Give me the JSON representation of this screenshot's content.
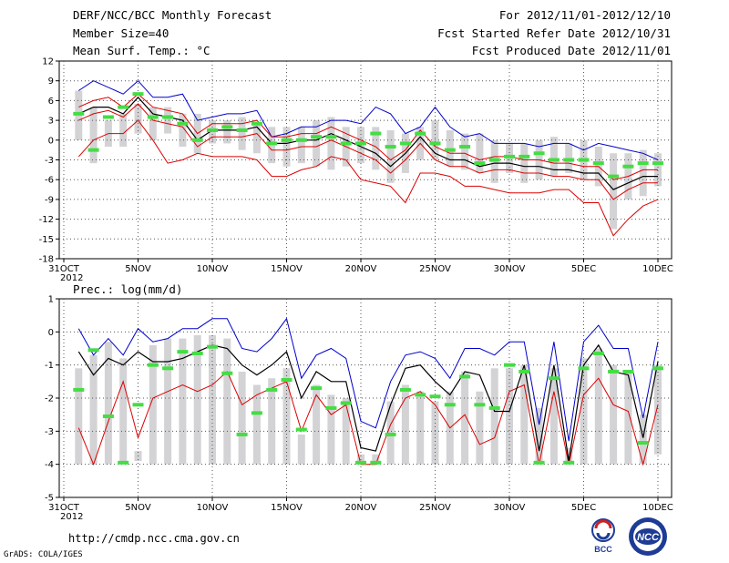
{
  "header": {
    "left_line1": "DERF/NCC/BCC Monthly Forecast",
    "left_line2": "Member Size=40",
    "left_line3": "Mean Surf. Temp.: °C",
    "right_line1": "For 2012/11/01-2012/12/10",
    "right_line2": "Fcst Started Refer Date 2012/10/31",
    "right_line3": "Fcst Produced Date 2012/11/01"
  },
  "footer": {
    "url": "http://cmdp.ncc.cma.gov.cn",
    "grads": "GrADS: COLA/IGES",
    "logo1_label": "BCC",
    "logo2_label": "NCC"
  },
  "colors": {
    "max": "#0000cc",
    "mean": "#000000",
    "min": "#dd0000",
    "bar": "#d3d3d6",
    "obs": "#44dd44"
  },
  "chart_data": [
    {
      "type": "line",
      "title": "Mean Surf. Temp.: °C",
      "x_tick_labels": [
        "31OCT",
        "5NOV",
        "10NOV",
        "15NOV",
        "20NOV",
        "25NOV",
        "30NOV",
        "5DEC",
        "10DEC"
      ],
      "x_year_label": "2012",
      "x_tick_days": [
        0,
        5,
        10,
        15,
        20,
        25,
        30,
        35,
        40
      ],
      "x_range": [
        0,
        40
      ],
      "ylim": [
        -18,
        12
      ],
      "y_ticks": [
        12,
        9,
        6,
        3,
        0,
        -3,
        -6,
        -9,
        -12,
        -15,
        -18
      ],
      "days": [
        1,
        2,
        3,
        4,
        5,
        6,
        7,
        8,
        9,
        10,
        11,
        12,
        13,
        14,
        15,
        16,
        17,
        18,
        19,
        20,
        21,
        22,
        23,
        24,
        25,
        26,
        27,
        28,
        29,
        30,
        31,
        32,
        33,
        34,
        35,
        36,
        37,
        38,
        39,
        40
      ],
      "series": [
        {
          "name": "max",
          "values": [
            7.5,
            9,
            8,
            7,
            9,
            6.5,
            6.5,
            7,
            3,
            3.5,
            4,
            4,
            4.5,
            0.5,
            1,
            2,
            2,
            3,
            3,
            2.5,
            5,
            4,
            1,
            2,
            5,
            2,
            0.5,
            1,
            -0.5,
            -0.5,
            -0.5,
            -1,
            -0.5,
            -0.5,
            -1.5,
            -0.5,
            -1,
            -1.5,
            -2,
            -3
          ]
        },
        {
          "name": "mean",
          "values": [
            4,
            5,
            5,
            4,
            6.5,
            4,
            3.5,
            3,
            0,
            1.5,
            1.5,
            1.5,
            2,
            -0.5,
            -0.5,
            0,
            0,
            1,
            0,
            -1,
            -2,
            -4,
            -2,
            0.5,
            -2,
            -3,
            -3,
            -4,
            -3.5,
            -3.5,
            -4,
            -4,
            -4.5,
            -4.5,
            -5,
            -5,
            -7.5,
            -6.5,
            -5.5,
            -5.5
          ]
        },
        {
          "name": "upper",
          "values": [
            5,
            6,
            6.5,
            5,
            7,
            5,
            4.5,
            4,
            1,
            2.5,
            2.5,
            2.5,
            3,
            0.5,
            0.5,
            1,
            1,
            2,
            1,
            0,
            -1,
            -3,
            -1.5,
            1.5,
            -1,
            -2,
            -2,
            -3,
            -2.5,
            -2.5,
            -3,
            -3,
            -3.5,
            -3.5,
            -4,
            -4,
            -6,
            -5.5,
            -4.5,
            -4.5
          ]
        },
        {
          "name": "lower",
          "values": [
            3,
            4,
            4.5,
            3.5,
            5.5,
            3,
            2.5,
            2,
            -1,
            0.5,
            0.5,
            0.5,
            1,
            -1.5,
            -1.5,
            -1,
            -1,
            0,
            -1,
            -2,
            -3,
            -5,
            -3,
            -0.5,
            -3,
            -4,
            -4,
            -5,
            -4.5,
            -4.5,
            -5,
            -5,
            -5.5,
            -5.5,
            -6,
            -6,
            -9,
            -7.5,
            -6.5,
            -6.5
          ]
        },
        {
          "name": "min",
          "values": [
            -2.5,
            0,
            1,
            1,
            3,
            0,
            -3.5,
            -3,
            -2,
            -2.5,
            -2.5,
            -2.5,
            -3,
            -5.5,
            -5.5,
            -4.5,
            -4,
            -2.5,
            -3,
            -6,
            -6.5,
            -7,
            -9.5,
            -5,
            -5,
            -5.5,
            -7,
            -7,
            -7.5,
            -8,
            -8,
            -8,
            -7.5,
            -7.5,
            -9.5,
            -9.5,
            -14.5,
            -12,
            -10,
            -9
          ]
        },
        {
          "name": "bar_top",
          "values": [
            7.5,
            5,
            3,
            4,
            5.5,
            5,
            5,
            4,
            4,
            3,
            3,
            3.5,
            2.5,
            2,
            2,
            2,
            3,
            3.5,
            2,
            2,
            2,
            1.5,
            1,
            2,
            3,
            1.5,
            1,
            1,
            0,
            -0.5,
            -0.5,
            0,
            0.5,
            -0.5,
            0,
            -1,
            -2,
            -2,
            -1.5,
            -2
          ]
        },
        {
          "name": "bar_bottom",
          "values": [
            0,
            -3.5,
            -1,
            -1,
            1,
            0,
            1,
            -1,
            -2,
            -0.5,
            -0.5,
            -1.5,
            -2,
            -3.5,
            -4,
            -3.5,
            -4,
            -4.5,
            -4,
            -3.5,
            -4.5,
            -6.5,
            -5,
            -3,
            -3,
            -4,
            -4.5,
            -5,
            -6.5,
            -5,
            -6.5,
            -6,
            -5.5,
            -5,
            -6,
            -7,
            -13.5,
            -9,
            -8.5,
            -7
          ]
        },
        {
          "name": "obs",
          "values": [
            4,
            -1.5,
            3.5,
            5,
            7,
            3.5,
            3.5,
            2.5,
            0,
            1.5,
            2,
            1.5,
            2.5,
            -0.5,
            0,
            0,
            0.5,
            0.5,
            -0.5,
            -0.5,
            1,
            -1,
            -0.5,
            1,
            -0.5,
            -1.5,
            -1,
            -3.5,
            -3,
            -2.5,
            -2.5,
            -2,
            -3,
            -3,
            -3,
            -3.5,
            -5.5,
            -4,
            -3.5,
            -3.5
          ]
        }
      ]
    },
    {
      "type": "line",
      "title": "Prec.: log(mm/d)",
      "x_tick_labels": [
        "31OCT",
        "5NOV",
        "10NOV",
        "15NOV",
        "20NOV",
        "25NOV",
        "30NOV",
        "5DEC",
        "10DEC"
      ],
      "x_year_label": "2012",
      "x_tick_days": [
        0,
        5,
        10,
        15,
        20,
        25,
        30,
        35,
        40
      ],
      "x_range": [
        0,
        40
      ],
      "ylim": [
        -5,
        1
      ],
      "y_ticks": [
        1,
        0,
        -1,
        -2,
        -3,
        -4,
        -5
      ],
      "days": [
        1,
        2,
        3,
        4,
        5,
        6,
        7,
        8,
        9,
        10,
        11,
        12,
        13,
        14,
        15,
        16,
        17,
        18,
        19,
        20,
        21,
        22,
        23,
        24,
        25,
        26,
        27,
        28,
        29,
        30,
        31,
        32,
        33,
        34,
        35,
        36,
        37,
        38,
        39,
        40
      ],
      "series": [
        {
          "name": "max",
          "values": [
            0.1,
            -0.7,
            -0.2,
            -0.7,
            0.1,
            -0.3,
            -0.2,
            0.1,
            0.1,
            0.4,
            0.4,
            -0.5,
            -0.6,
            -0.2,
            0.4,
            -1.4,
            -0.7,
            -0.5,
            -0.8,
            -2.7,
            -2.9,
            -1.5,
            -0.7,
            -0.6,
            -0.8,
            -1.4,
            -0.5,
            -0.5,
            -0.7,
            -0.3,
            -0.3,
            -2.8,
            -0.3,
            -3.3,
            -0.3,
            0.2,
            -0.5,
            -0.5,
            -2.6,
            -0.3
          ]
        },
        {
          "name": "mean",
          "values": [
            -0.6,
            -1.3,
            -0.8,
            -1.0,
            -0.6,
            -0.9,
            -0.9,
            -0.8,
            -0.6,
            -0.4,
            -0.5,
            -1.0,
            -1.3,
            -1.0,
            -0.6,
            -2.0,
            -1.2,
            -1.5,
            -1.5,
            -3.5,
            -3.6,
            -2.2,
            -1.1,
            -1.0,
            -1.5,
            -1.9,
            -1.2,
            -1.3,
            -2.4,
            -2.4,
            -1.0,
            -3.6,
            -1.0,
            -3.9,
            -1.0,
            -0.4,
            -1.2,
            -1.3,
            -3.2,
            -0.9
          ]
        },
        {
          "name": "min",
          "values": [
            -2.9,
            -4.0,
            -2.7,
            -1.5,
            -3.2,
            -2.0,
            -1.8,
            -1.6,
            -1.8,
            -1.6,
            -1.2,
            -2.2,
            -1.9,
            -1.7,
            -1.5,
            -3.0,
            -1.9,
            -2.5,
            -2.2,
            -4.0,
            -4.0,
            -2.8,
            -2.0,
            -1.8,
            -2.2,
            -2.9,
            -2.5,
            -3.4,
            -3.2,
            -1.8,
            -1.6,
            -4.0,
            -1.8,
            -4.0,
            -1.9,
            -1.4,
            -2.2,
            -2.4,
            -4.0,
            -2.2
          ]
        },
        {
          "name": "bar_top",
          "values": [
            -1.1,
            -0.7,
            -0.3,
            -0.8,
            -3.6,
            -0.4,
            -0.2,
            -0.2,
            -0.1,
            -0.1,
            -0.2,
            -1.2,
            -1.6,
            -1.4,
            -1.1,
            -3.1,
            -1.6,
            -1.9,
            -2.0,
            -3.7,
            -3.7,
            -2.1,
            -1.6,
            -1.8,
            -2.1,
            -1.8,
            -1.2,
            -1.8,
            -1.1,
            -1.1,
            -1.0,
            -2.3,
            -1.1,
            -3.5,
            -0.8,
            -0.5,
            -1.0,
            -1.2,
            -2.5,
            -1.0
          ]
        },
        {
          "name": "bar_bottom",
          "values": [
            -4,
            -4,
            -4,
            -4,
            -3.9,
            -4,
            -4,
            -4,
            -4,
            -4,
            -4,
            -4,
            -4,
            -4,
            -4,
            -4,
            -4,
            -4,
            -4,
            -4,
            -4,
            -4,
            -4,
            -4,
            -4,
            -4,
            -4,
            -4,
            -4,
            -4,
            -4,
            -4,
            -4,
            -4,
            -4,
            -4,
            -4,
            -4,
            -4,
            -3.7
          ]
        },
        {
          "name": "obs",
          "values": [
            -1.75,
            -0.55,
            -2.55,
            -3.95,
            -2.2,
            -1.0,
            -1.1,
            -0.6,
            -0.65,
            -0.45,
            -1.25,
            -3.1,
            -2.45,
            -1.75,
            -1.45,
            -2.95,
            -1.7,
            -2.3,
            -2.15,
            -3.95,
            -3.95,
            -3.1,
            -1.75,
            -1.9,
            -1.95,
            -2.2,
            -1.35,
            -2.2,
            -2.3,
            -1.0,
            -1.2,
            -3.95,
            -1.4,
            -3.95,
            -1.1,
            -0.65,
            -1.2,
            -1.2,
            -3.35,
            -1.1
          ]
        }
      ]
    }
  ]
}
